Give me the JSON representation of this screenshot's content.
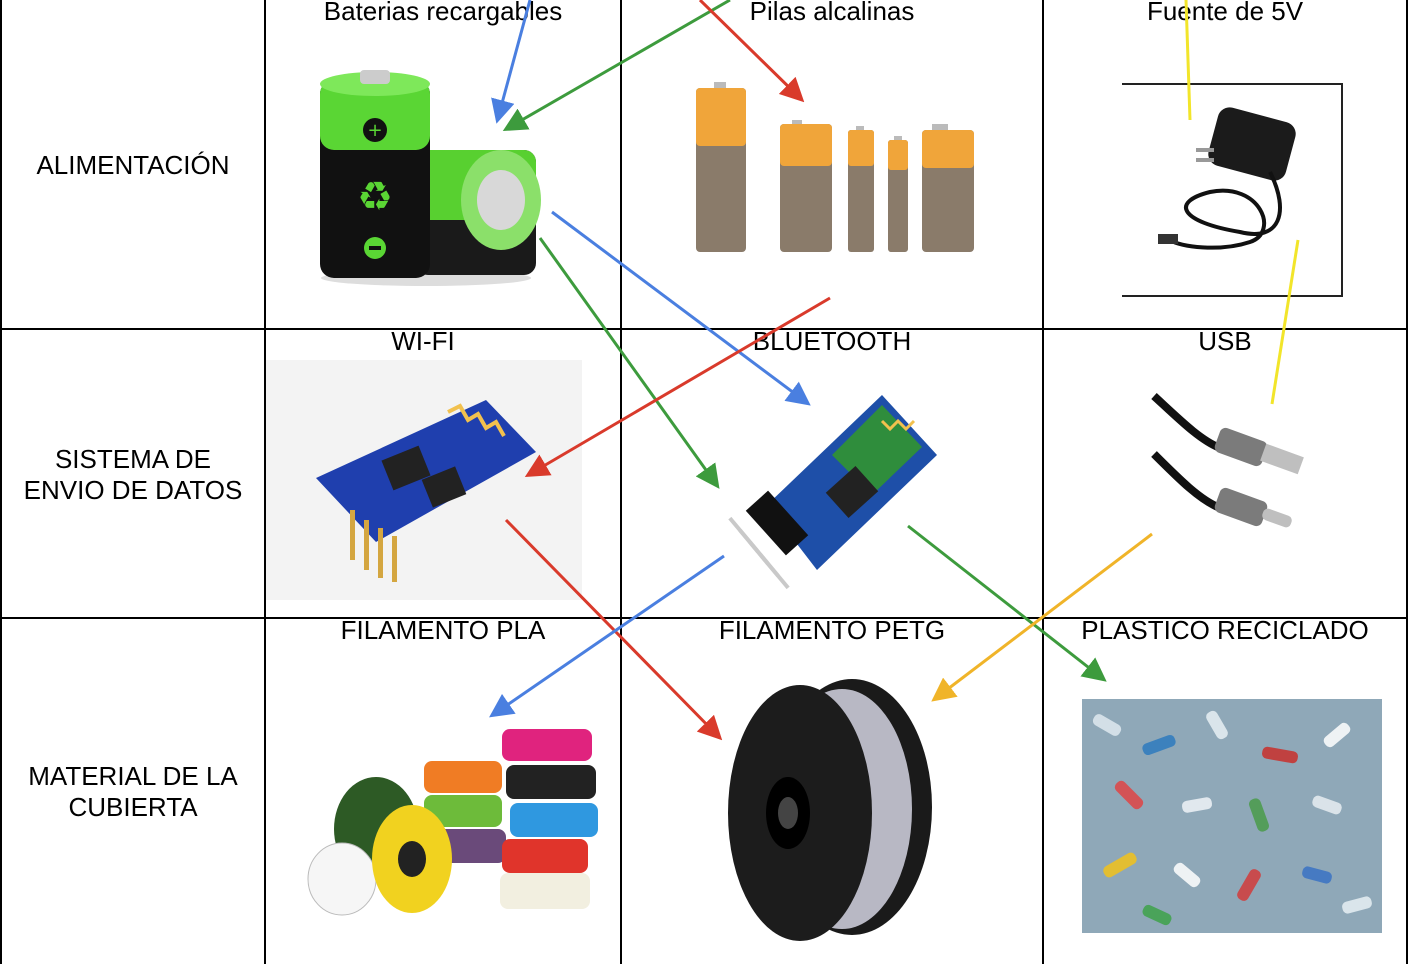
{
  "rows": [
    {
      "label": "ALIMENTACIÓN",
      "items": [
        "Baterias recargables",
        "Pilas alcalinas",
        "Fuente de 5V"
      ]
    },
    {
      "label": "SISTEMA DE\nENVIO DE DATOS",
      "items": [
        "WI-FI",
        "BLUETOOTH",
        "USB"
      ]
    },
    {
      "label": "MATERIAL DE LA\nCUBIERTA",
      "items": [
        "FILAMENTO PLA",
        "FILAMENTO PETG",
        "PLASTICO RECICLADO"
      ]
    }
  ],
  "icons": {
    "battery_rechargeable": "rechargeable-battery-icon",
    "alkaline": "alkaline-batteries-icon",
    "charger": "power-adapter-icon",
    "wifi": "wifi-module-icon",
    "bluetooth": "bluetooth-module-icon",
    "usb": "usb-cable-icon",
    "pla": "filament-spools-icon",
    "petg": "petg-spool-icon",
    "recycled": "recycled-plastic-icon"
  },
  "link_colors": {
    "blue": "#4a7fe0",
    "green": "#3d9b3d",
    "red": "#d93a2b",
    "yellow": "#f2e52a",
    "orange": "#f0b429"
  }
}
